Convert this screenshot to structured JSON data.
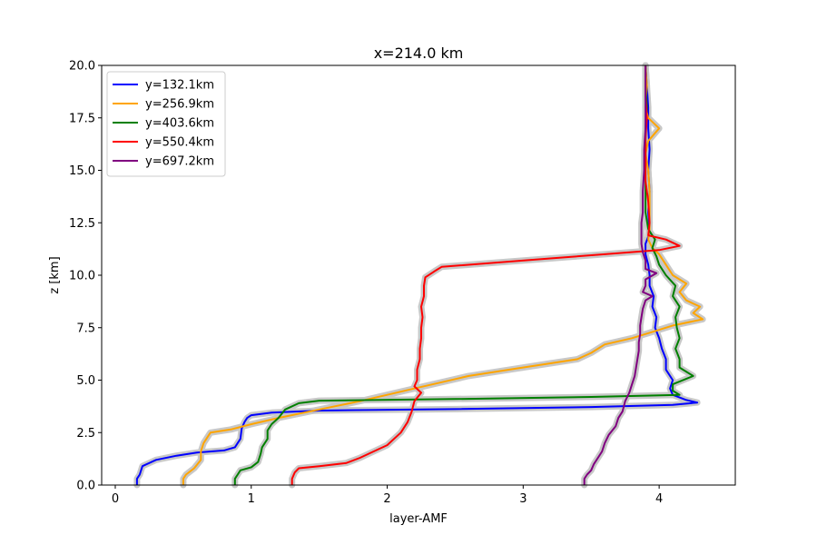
{
  "chart_data": {
    "type": "line",
    "title": "x=214.0 km",
    "xlabel": "layer-AMF",
    "ylabel": "z [km]",
    "xlim": [
      -0.1,
      4.56
    ],
    "ylim": [
      0,
      20
    ],
    "xticks": [
      0,
      1,
      2,
      3,
      4
    ],
    "yticks": [
      0.0,
      2.5,
      5.0,
      7.5,
      10.0,
      12.5,
      15.0,
      17.5,
      20.0
    ],
    "xtick_labels": [
      "0",
      "1",
      "2",
      "3",
      "4"
    ],
    "ytick_labels": [
      "0.0",
      "2.5",
      "5.0",
      "7.5",
      "10.0",
      "12.5",
      "15.0",
      "17.5",
      "20.0"
    ],
    "grid": false,
    "legend_position": "top-left",
    "uncertainty_band_color": "#c8c8c8",
    "series": [
      {
        "name": "y=132.1km",
        "color": "#0000ff",
        "points": [
          [
            0.16,
            0
          ],
          [
            0.16,
            0.3
          ],
          [
            0.18,
            0.5
          ],
          [
            0.2,
            0.9
          ],
          [
            0.3,
            1.2
          ],
          [
            0.45,
            1.4
          ],
          [
            0.6,
            1.55
          ],
          [
            0.8,
            1.65
          ],
          [
            0.88,
            1.8
          ],
          [
            0.92,
            2.2
          ],
          [
            0.93,
            2.7
          ],
          [
            0.95,
            3.0
          ],
          [
            0.97,
            3.2
          ],
          [
            1.0,
            3.33
          ],
          [
            1.15,
            3.45
          ],
          [
            1.5,
            3.55
          ],
          [
            2.5,
            3.62
          ],
          [
            3.5,
            3.72
          ],
          [
            4.1,
            3.82
          ],
          [
            4.28,
            3.93
          ],
          [
            4.2,
            4.05
          ],
          [
            4.1,
            4.3
          ],
          [
            4.08,
            4.6
          ],
          [
            4.1,
            5.0
          ],
          [
            4.05,
            5.5
          ],
          [
            4.05,
            6.0
          ],
          [
            4.02,
            6.5
          ],
          [
            4.0,
            7.0
          ],
          [
            3.97,
            7.5
          ],
          [
            3.98,
            8.0
          ],
          [
            3.95,
            8.5
          ],
          [
            3.96,
            9.0
          ],
          [
            3.93,
            9.5
          ],
          [
            3.93,
            10.0
          ],
          [
            3.92,
            10.5
          ],
          [
            3.9,
            11.0
          ],
          [
            3.9,
            11.5
          ],
          [
            3.93,
            12.0
          ],
          [
            3.92,
            13.0
          ],
          [
            3.93,
            14.0
          ],
          [
            3.92,
            15.0
          ],
          [
            3.93,
            16.0
          ],
          [
            3.92,
            17.0
          ],
          [
            3.92,
            18.0
          ],
          [
            3.91,
            19.0
          ],
          [
            3.9,
            20.0
          ]
        ]
      },
      {
        "name": "y=256.9km",
        "color": "#ffa500",
        "points": [
          [
            0.5,
            0
          ],
          [
            0.5,
            0.3
          ],
          [
            0.52,
            0.5
          ],
          [
            0.58,
            0.8
          ],
          [
            0.63,
            1.2
          ],
          [
            0.63,
            1.6
          ],
          [
            0.65,
            2.0
          ],
          [
            0.7,
            2.5
          ],
          [
            0.85,
            2.65
          ],
          [
            1.0,
            2.9
          ],
          [
            1.2,
            3.2
          ],
          [
            1.5,
            3.6
          ],
          [
            1.8,
            4.0
          ],
          [
            2.0,
            4.3
          ],
          [
            2.2,
            4.6
          ],
          [
            2.4,
            4.9
          ],
          [
            2.6,
            5.2
          ],
          [
            2.9,
            5.5
          ],
          [
            3.2,
            5.8
          ],
          [
            3.4,
            6.0
          ],
          [
            3.5,
            6.3
          ],
          [
            3.6,
            6.7
          ],
          [
            3.8,
            7.0
          ],
          [
            3.95,
            7.3
          ],
          [
            4.1,
            7.6
          ],
          [
            4.32,
            7.9
          ],
          [
            4.25,
            8.2
          ],
          [
            4.3,
            8.5
          ],
          [
            4.2,
            8.8
          ],
          [
            4.15,
            9.2
          ],
          [
            4.2,
            9.6
          ],
          [
            4.1,
            10.0
          ],
          [
            4.05,
            10.5
          ],
          [
            4.0,
            11.0
          ],
          [
            3.95,
            11.3
          ],
          [
            3.92,
            11.7
          ],
          [
            3.93,
            12.2
          ],
          [
            3.93,
            13.0
          ],
          [
            3.93,
            14.0
          ],
          [
            3.92,
            15.0
          ],
          [
            3.9,
            15.8
          ],
          [
            3.92,
            16.4
          ],
          [
            4.0,
            17.0
          ],
          [
            3.92,
            17.5
          ],
          [
            3.9,
            18.0
          ],
          [
            3.91,
            19.0
          ],
          [
            3.9,
            20.0
          ]
        ]
      },
      {
        "name": "y=403.6km",
        "color": "#008000",
        "points": [
          [
            0.88,
            0
          ],
          [
            0.88,
            0.3
          ],
          [
            0.9,
            0.5
          ],
          [
            0.92,
            0.7
          ],
          [
            1.0,
            0.85
          ],
          [
            1.05,
            1.1
          ],
          [
            1.07,
            1.5
          ],
          [
            1.08,
            1.8
          ],
          [
            1.12,
            2.2
          ],
          [
            1.12,
            2.6
          ],
          [
            1.15,
            2.9
          ],
          [
            1.2,
            3.2
          ],
          [
            1.25,
            3.6
          ],
          [
            1.35,
            3.9
          ],
          [
            1.5,
            4.02
          ],
          [
            2.5,
            4.1
          ],
          [
            3.5,
            4.2
          ],
          [
            4.15,
            4.3
          ],
          [
            4.1,
            4.5
          ],
          [
            4.1,
            4.8
          ],
          [
            4.25,
            5.2
          ],
          [
            4.15,
            5.6
          ],
          [
            4.15,
            6.0
          ],
          [
            4.12,
            6.5
          ],
          [
            4.15,
            7.0
          ],
          [
            4.13,
            7.5
          ],
          [
            4.12,
            8.0
          ],
          [
            4.15,
            8.5
          ],
          [
            4.1,
            9.0
          ],
          [
            4.12,
            9.5
          ],
          [
            4.05,
            10.0
          ],
          [
            4.0,
            10.5
          ],
          [
            3.98,
            10.9
          ],
          [
            3.95,
            11.3
          ],
          [
            3.97,
            11.7
          ],
          [
            3.92,
            12.2
          ],
          [
            3.9,
            13.0
          ],
          [
            3.9,
            14.0
          ],
          [
            3.9,
            15.0
          ],
          [
            3.9,
            16.0
          ],
          [
            3.9,
            17.0
          ],
          [
            3.91,
            18.0
          ],
          [
            3.9,
            19.0
          ],
          [
            3.9,
            20.0
          ]
        ]
      },
      {
        "name": "y=550.4km",
        "color": "#ff0000",
        "points": [
          [
            1.3,
            0
          ],
          [
            1.3,
            0.3
          ],
          [
            1.32,
            0.6
          ],
          [
            1.35,
            0.8
          ],
          [
            1.5,
            0.9
          ],
          [
            1.7,
            1.05
          ],
          [
            1.8,
            1.3
          ],
          [
            1.9,
            1.6
          ],
          [
            2.0,
            1.9
          ],
          [
            2.05,
            2.2
          ],
          [
            2.1,
            2.5
          ],
          [
            2.15,
            3.0
          ],
          [
            2.18,
            3.5
          ],
          [
            2.2,
            4.0
          ],
          [
            2.25,
            4.4
          ],
          [
            2.2,
            4.7
          ],
          [
            2.22,
            5.0
          ],
          [
            2.22,
            5.5
          ],
          [
            2.24,
            6.0
          ],
          [
            2.24,
            6.5
          ],
          [
            2.25,
            7.0
          ],
          [
            2.25,
            7.5
          ],
          [
            2.26,
            8.0
          ],
          [
            2.25,
            8.5
          ],
          [
            2.27,
            9.0
          ],
          [
            2.27,
            9.5
          ],
          [
            2.28,
            9.9
          ],
          [
            2.35,
            10.2
          ],
          [
            2.4,
            10.4
          ],
          [
            2.8,
            10.6
          ],
          [
            3.2,
            10.8
          ],
          [
            3.6,
            11.0
          ],
          [
            4.0,
            11.2
          ],
          [
            4.15,
            11.4
          ],
          [
            4.05,
            11.7
          ],
          [
            3.92,
            11.9
          ],
          [
            3.93,
            12.5
          ],
          [
            3.92,
            13.5
          ],
          [
            3.9,
            14.5
          ],
          [
            3.9,
            15.5
          ],
          [
            3.9,
            16.5
          ],
          [
            3.91,
            17.5
          ],
          [
            3.9,
            18.5
          ],
          [
            3.9,
            20.0
          ]
        ]
      },
      {
        "name": "y=697.2km",
        "color": "#800080",
        "points": [
          [
            3.45,
            0
          ],
          [
            3.45,
            0.3
          ],
          [
            3.47,
            0.5
          ],
          [
            3.5,
            0.7
          ],
          [
            3.52,
            1.0
          ],
          [
            3.55,
            1.3
          ],
          [
            3.58,
            1.6
          ],
          [
            3.6,
            2.0
          ],
          [
            3.63,
            2.4
          ],
          [
            3.68,
            2.8
          ],
          [
            3.7,
            3.2
          ],
          [
            3.73,
            3.5
          ],
          [
            3.75,
            4.0
          ],
          [
            3.78,
            4.4
          ],
          [
            3.8,
            4.8
          ],
          [
            3.82,
            5.2
          ],
          [
            3.83,
            5.6
          ],
          [
            3.84,
            6.0
          ],
          [
            3.85,
            6.4
          ],
          [
            3.85,
            6.8
          ],
          [
            3.86,
            7.2
          ],
          [
            3.86,
            7.6
          ],
          [
            3.87,
            8.0
          ],
          [
            3.88,
            8.4
          ],
          [
            3.9,
            8.8
          ],
          [
            3.95,
            9.0
          ],
          [
            3.88,
            9.2
          ],
          [
            3.9,
            9.5
          ],
          [
            3.9,
            9.8
          ],
          [
            3.98,
            10.1
          ],
          [
            3.9,
            10.3
          ],
          [
            3.9,
            10.7
          ],
          [
            3.88,
            11.1
          ],
          [
            3.87,
            11.5
          ],
          [
            3.87,
            12.0
          ],
          [
            3.87,
            12.5
          ],
          [
            3.88,
            13.0
          ],
          [
            3.88,
            14.0
          ],
          [
            3.89,
            15.0
          ],
          [
            3.89,
            16.0
          ],
          [
            3.9,
            17.0
          ],
          [
            3.9,
            18.0
          ],
          [
            3.9,
            19.0
          ],
          [
            3.9,
            20.0
          ]
        ]
      }
    ]
  }
}
